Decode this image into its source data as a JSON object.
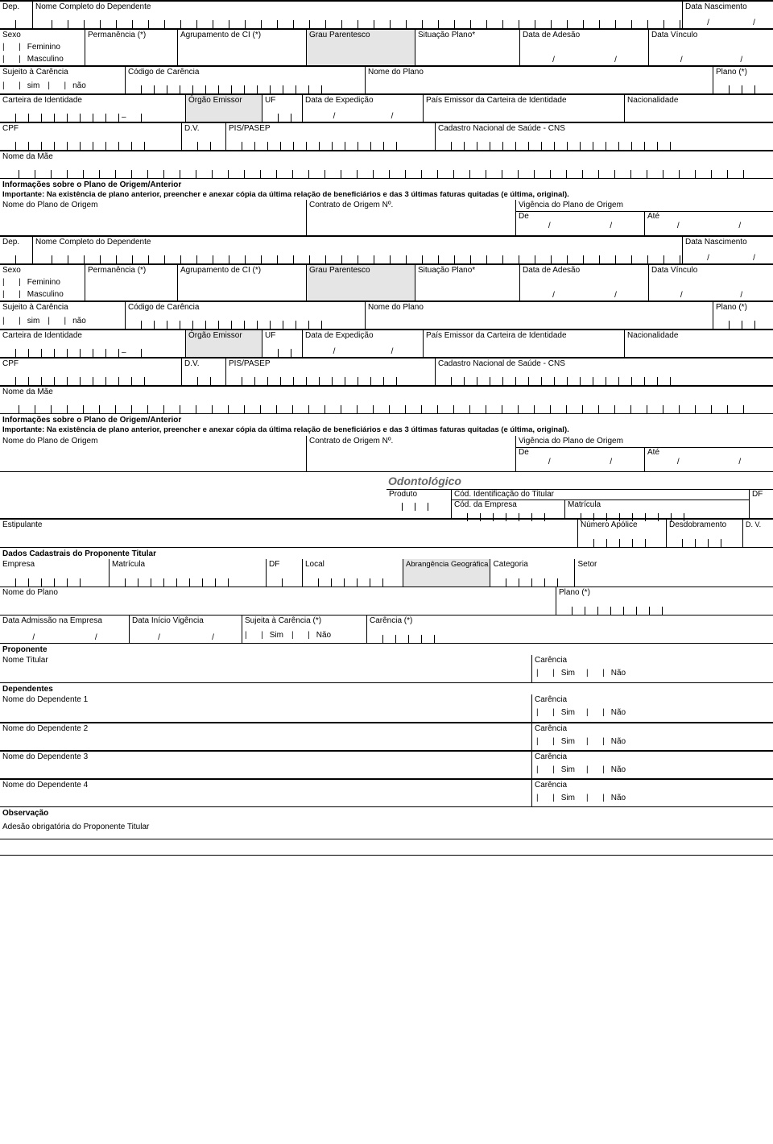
{
  "labels": {
    "dep": "Dep.",
    "nome_completo_dep": "Nome Completo do Dependente",
    "data_nasc": "Data Nascimento",
    "sexo": "Sexo",
    "feminino": "Feminino",
    "masculino": "Masculino",
    "permanencia": "Permanência (*)",
    "agrup_ci": "Agrupamento de CI (*)",
    "grau_parent": "Grau Parentesco",
    "sit_plano": "Situação Plano*",
    "data_adesao": "Data de Adesão",
    "data_vinculo": "Data Vínculo",
    "suj_carencia": "Sujeito à Carência",
    "sim": "sim",
    "nao": "não",
    "cod_carencia": "Código de Carência",
    "nome_plano": "Nome do Plano",
    "plano_ast": "Plano (*)",
    "carteira_ident": "Carteira de Identidade",
    "orgao_emissor": "Órgão Emissor",
    "uf": "UF",
    "data_exped": "Data de Expedição",
    "pais_emissor": "País Emissor da Carteira de Identidade",
    "nacionalidade": "Nacionalidade",
    "cpf": "CPF",
    "dv": "D.V.",
    "pis_pasep": "PIS/PASEP",
    "cns": "Cadastro Nacional de Saúde - CNS",
    "nome_mae": "Nome da Mãe",
    "info_plano_origem": "Informações sobre o Plano de Origem/Anterior",
    "importante": "Importante: Na existência de plano anterior, preencher e anexar cópia da última relação de beneficiários e das 3 últimas faturas quitadas (e última, original).",
    "nome_plano_origem": "Nome do Plano de Origem",
    "contrato_origem": "Contrato de Origem Nº.",
    "vig_plano_origem": "Vigência do Plano de Origem",
    "de": "De",
    "ate": "Até",
    "odontologico": "Odontológico",
    "produto": "Produto",
    "cod_ident_tit": "Cód. Identificação do Titular",
    "cod_empresa": "Cód. da Empresa",
    "matricula": "Matrícula",
    "df": "DF",
    "estipulante": "Estipulante",
    "num_apolice": "Número Apólice",
    "desdobramento": "Desdobramento",
    "dv_short": "D. V.",
    "dados_cad_tit": "Dados Cadastrais do Proponente Titular",
    "empresa": "Empresa",
    "local": "Local",
    "abrang_geo": "Abrangência Geográfica",
    "categoria": "Categoria",
    "setor": "Setor",
    "data_adm_emp": "Data Admissão na Empresa",
    "data_ini_vig": "Data Início Vigência",
    "suj_carencia_ast": "Sujeita à Carência (*)",
    "carencia_ast": "Carência (*)",
    "sim_cap": "Sim",
    "nao_cap": "Não",
    "proponente": "Proponente",
    "nome_titular": "Nome Titular",
    "carencia": "Carência",
    "dependentes": "Dependentes",
    "nome_dep_1": "Nome do Dependente 1",
    "nome_dep_2": "Nome do Dependente 2",
    "nome_dep_3": "Nome do Dependente 3",
    "nome_dep_4": "Nome do Dependente 4",
    "observacao": "Observação",
    "adesao_obrig": "Adesão obrigatória do Proponente Titular"
  }
}
